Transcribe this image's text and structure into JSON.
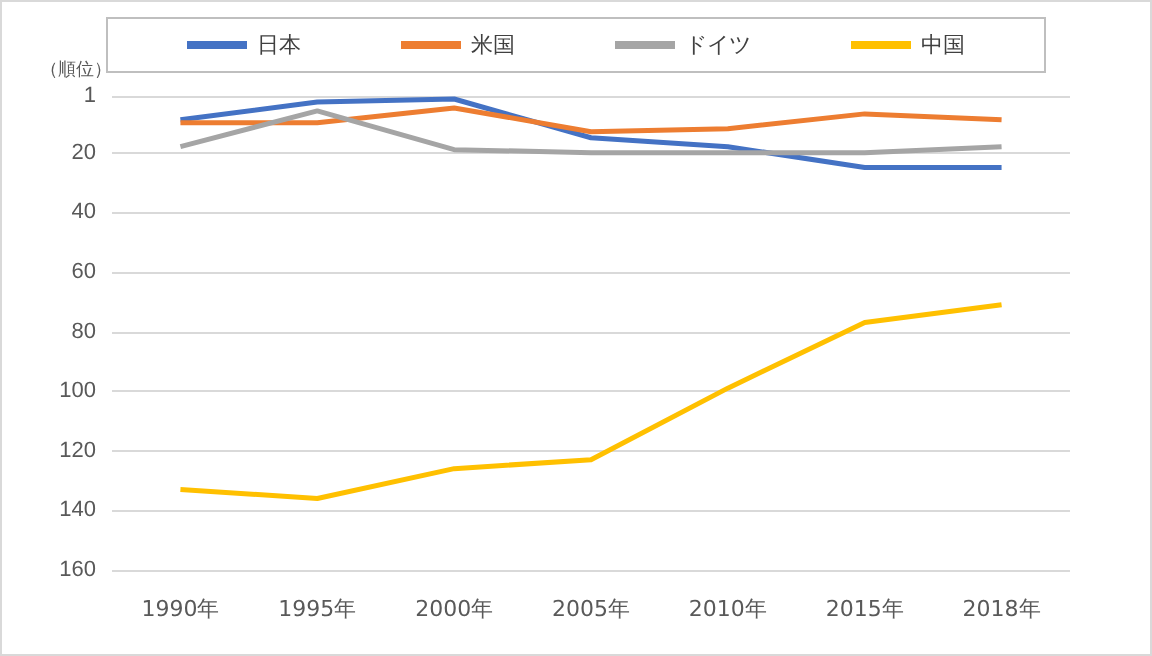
{
  "chart_data": {
    "type": "line",
    "ylabel": "（順位）",
    "categories": [
      "1990年",
      "1995年",
      "2000年",
      "2005年",
      "2010年",
      "2015年",
      "2018年"
    ],
    "series": [
      {
        "name": "日本",
        "color": "#4472c4",
        "values": [
          9,
          3,
          2,
          15,
          18,
          25,
          25
        ]
      },
      {
        "name": "米国",
        "color": "#ed7d31",
        "values": [
          10,
          10,
          5,
          13,
          12,
          7,
          9
        ]
      },
      {
        "name": "ドイツ",
        "color": "#a5a5a5",
        "values": [
          18,
          6,
          19,
          20,
          20,
          20,
          18
        ]
      },
      {
        "name": "中国",
        "color": "#ffc000",
        "values": [
          133,
          136,
          126,
          123,
          99,
          77,
          71
        ]
      }
    ],
    "ylim": [
      160,
      1
    ],
    "yticks": [
      1,
      20,
      40,
      60,
      80,
      100,
      120,
      140,
      160
    ],
    "grid": "y",
    "legend": "top",
    "marker": "none",
    "line_style": "solid"
  }
}
